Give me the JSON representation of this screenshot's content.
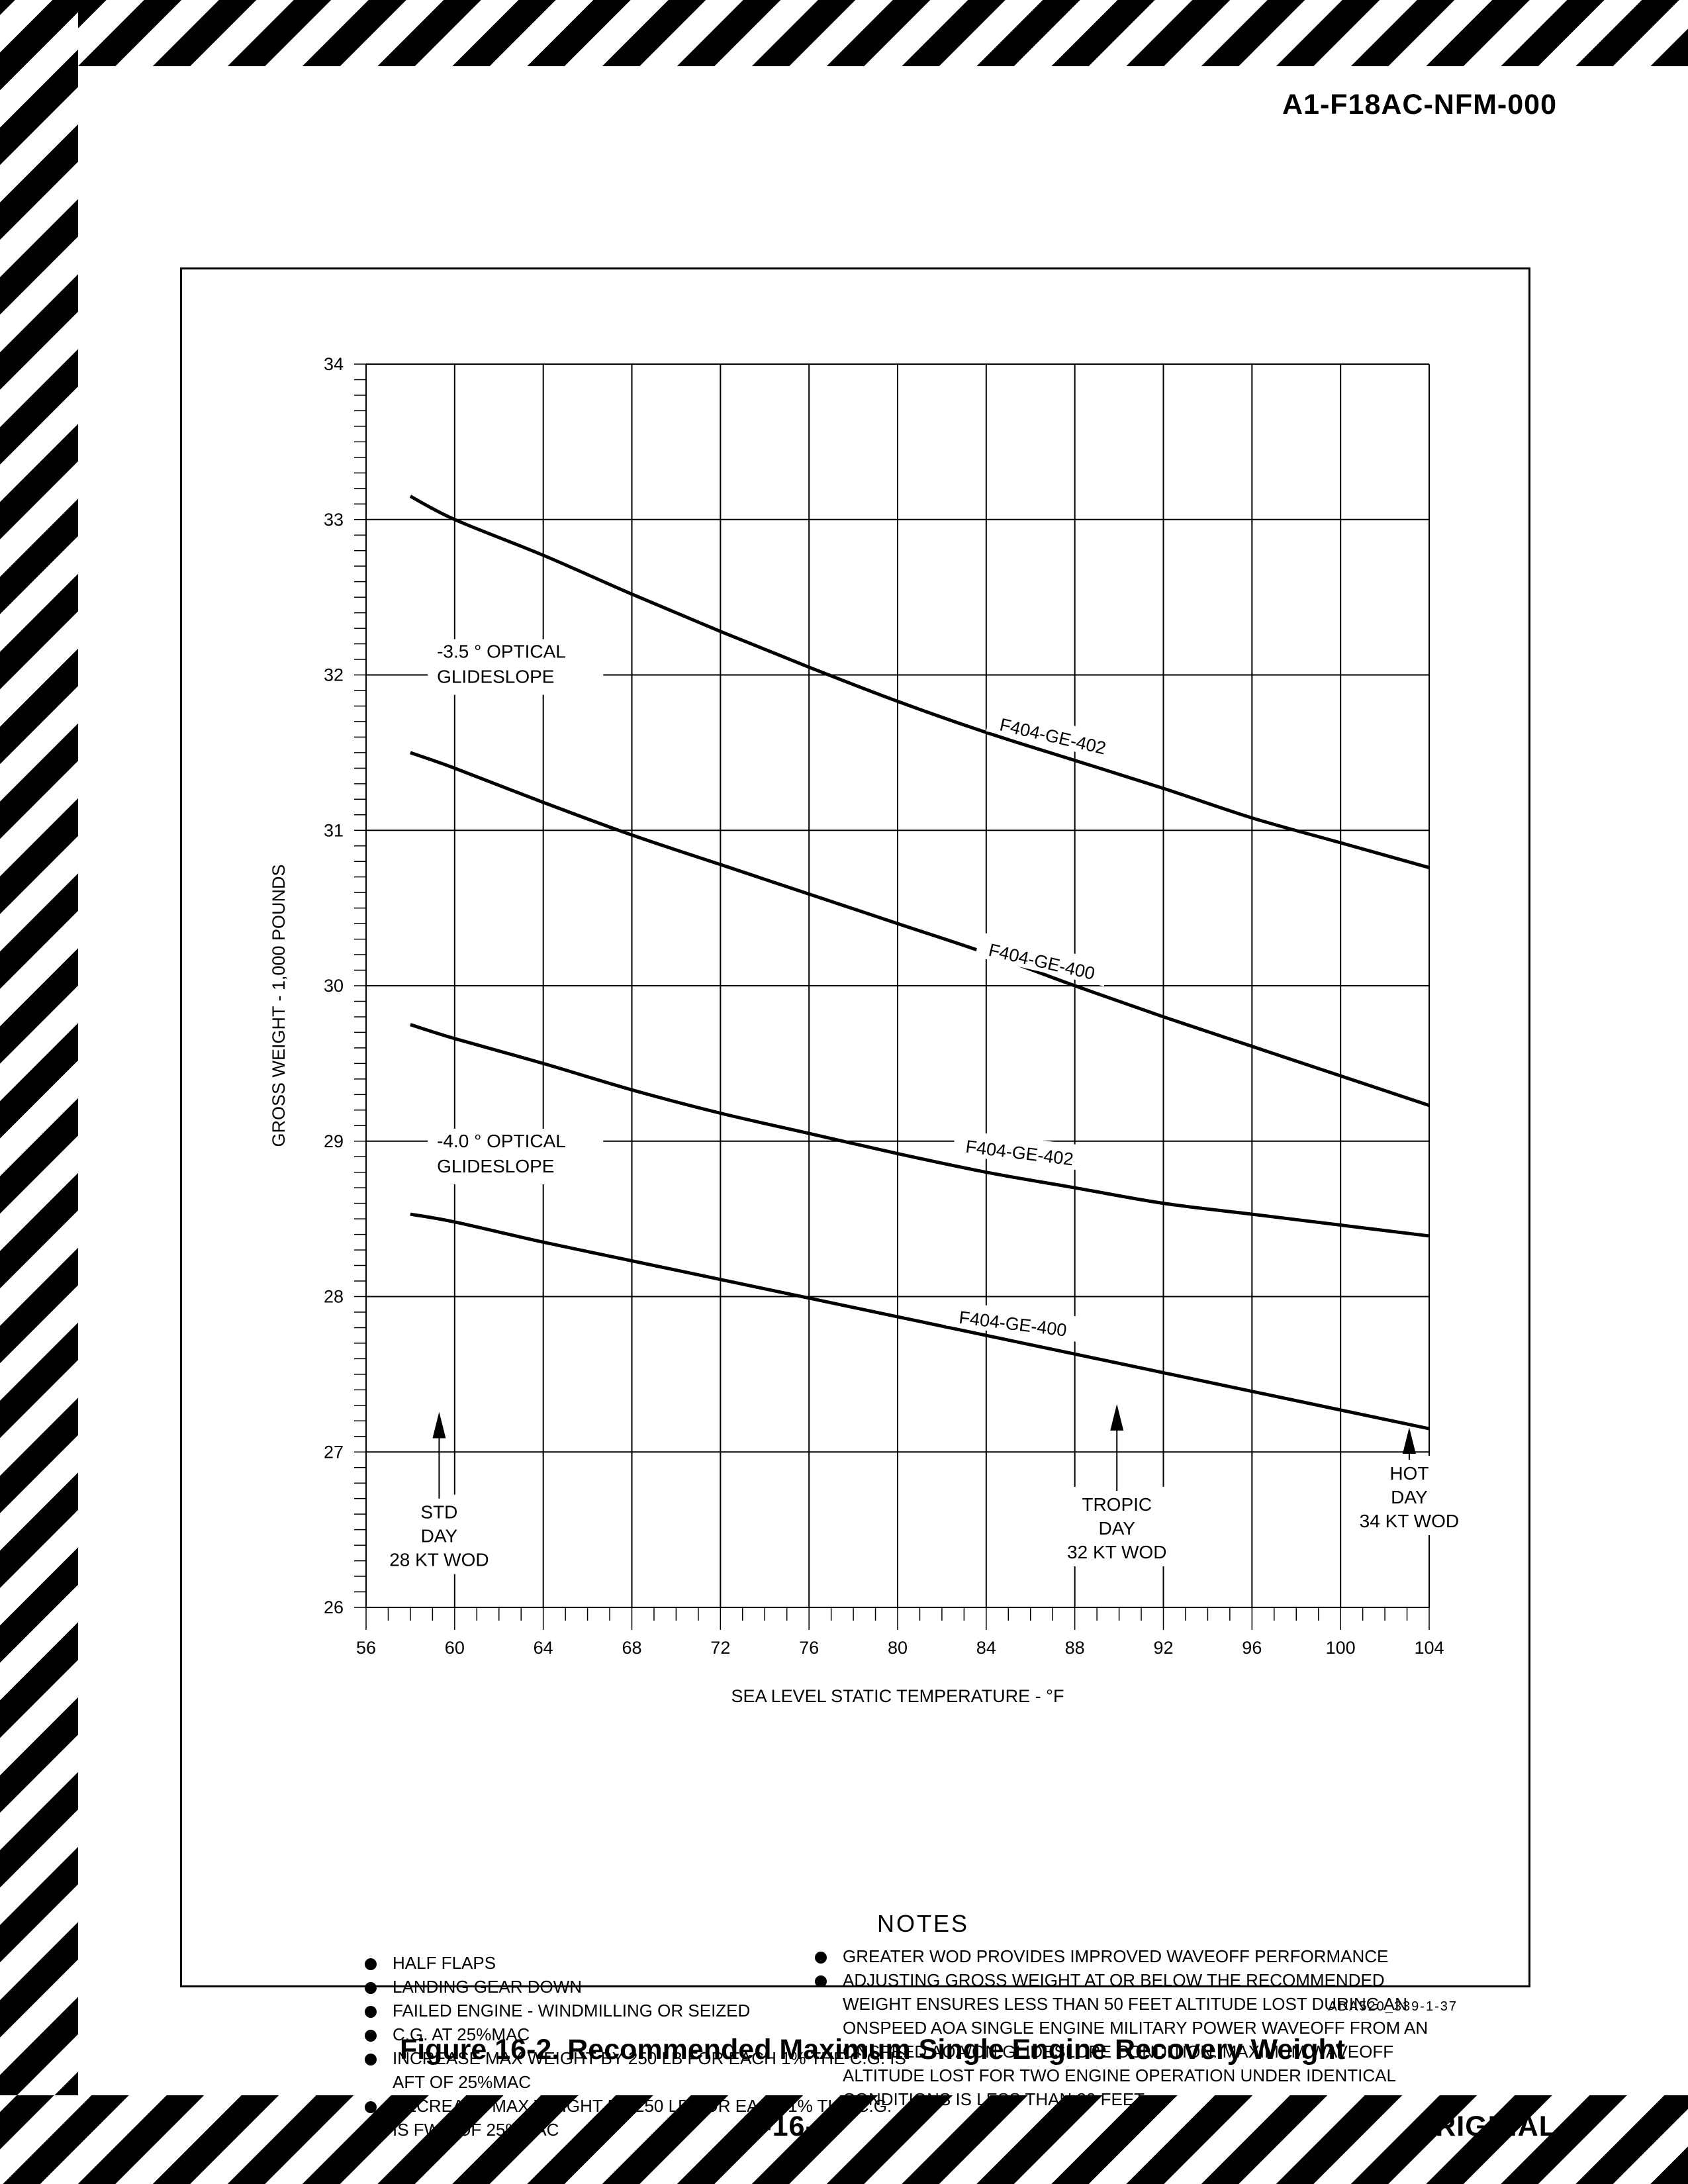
{
  "header": {
    "doc_number": "A1-F18AC-NFM-000"
  },
  "footer": {
    "page_number": "V-16-4",
    "status": "ORIGINAL"
  },
  "figure": {
    "caption": "Figure 16-2. Recommended Maximum Single Engine Recovery Weight",
    "code": "ADA520_339-1-37"
  },
  "chart_data": {
    "type": "line",
    "xlabel": "SEA LEVEL STATIC TEMPERATURE - °F",
    "ylabel": "GROSS WEIGHT - 1,000 POUNDS",
    "xlim": [
      56,
      104
    ],
    "ylim": [
      26,
      34
    ],
    "x_ticks": [
      56,
      60,
      64,
      68,
      72,
      76,
      80,
      84,
      88,
      92,
      96,
      100,
      104
    ],
    "y_ticks": [
      26,
      27,
      28,
      29,
      30,
      31,
      32,
      33,
      34
    ],
    "grid": true,
    "series": [
      {
        "name": "F404-GE-402",
        "label_x": 87,
        "label_y": 31.6,
        "label_angle": 13,
        "x": [
          58,
          60,
          64,
          68,
          72,
          76,
          80,
          84,
          88,
          92,
          96,
          100,
          104
        ],
        "y": [
          33.15,
          33.0,
          32.77,
          32.52,
          32.28,
          32.05,
          31.83,
          31.63,
          31.45,
          31.27,
          31.08,
          30.92,
          30.76
        ]
      },
      {
        "name": "F404-GE-400",
        "label_x": 86.5,
        "label_y": 30.15,
        "label_angle": 13,
        "x": [
          58,
          60,
          64,
          68,
          72,
          76,
          80,
          84,
          88,
          92,
          96,
          100,
          104
        ],
        "y": [
          31.5,
          31.4,
          31.18,
          30.97,
          30.78,
          30.59,
          30.4,
          30.21,
          30.0,
          29.8,
          29.61,
          29.42,
          29.23
        ]
      },
      {
        "name": "F404-GE-402",
        "label_x": 85.5,
        "label_y": 28.92,
        "label_angle": 7,
        "x": [
          58,
          60,
          64,
          68,
          72,
          76,
          80,
          84,
          88,
          92,
          96,
          100,
          104
        ],
        "y": [
          29.75,
          29.66,
          29.5,
          29.33,
          29.18,
          29.05,
          28.92,
          28.8,
          28.7,
          28.6,
          28.53,
          28.46,
          28.39
        ]
      },
      {
        "name": "F404-GE-400",
        "label_x": 85.2,
        "label_y": 27.82,
        "label_angle": 7,
        "x": [
          58,
          60,
          64,
          68,
          72,
          76,
          80,
          84,
          88,
          92,
          96,
          100,
          104
        ],
        "y": [
          28.53,
          28.48,
          28.35,
          28.23,
          28.11,
          27.99,
          27.87,
          27.75,
          27.63,
          27.51,
          27.39,
          27.27,
          27.15
        ]
      }
    ],
    "annotations": [
      {
        "name": "glideslope-35",
        "lines": [
          "-3.5 ° OPTICAL",
          "GLIDESLOPE"
        ],
        "x": 59.2,
        "y": 32.0
      },
      {
        "name": "glideslope-40",
        "lines": [
          "-4.0 ° OPTICAL",
          "GLIDESLOPE"
        ],
        "x": 59.2,
        "y": 28.85
      },
      {
        "name": "std-day",
        "lines": [
          "STD",
          "DAY",
          "28 KT WOD"
        ],
        "x": 59.3,
        "arrow_from": 26.7,
        "arrow_to": 27.25
      },
      {
        "name": "tropic-day",
        "lines": [
          "TROPIC",
          "DAY",
          "32 KT WOD"
        ],
        "x": 89.9,
        "arrow_from": 26.75,
        "arrow_to": 27.3
      },
      {
        "name": "hot-day",
        "lines": [
          "HOT",
          "DAY",
          "34 KT WOD"
        ],
        "x": 103.1,
        "arrow_from": 26.95,
        "arrow_to": 27.15
      }
    ]
  },
  "notes": {
    "title": "NOTES",
    "left": [
      "HALF FLAPS",
      "LANDING GEAR DOWN",
      "FAILED ENGINE - WINDMILLING OR SEIZED",
      "C.G. AT 25%MAC",
      "INCREASE MAX WEIGHT BY 250 LB FOR EACH 1% THE C.G. IS AFT OF 25%MAC",
      "DECREASE MAX WEIGHT BY 250 LB FOR EACH 1% THE C.G. IS FWD OF 25%MAC"
    ],
    "right": [
      "GREATER WOD PROVIDES IMPROVED WAVEOFF PERFORMANCE",
      "ADJUSTING GROSS WEIGHT AT OR BELOW THE RECOMMENDED WEIGHT ENSURES LESS THAN 50 FEET ALTITUDE LOST DURING AN ONSPEED AOA SINGLE ENGINE MILITARY POWER WAVEOFF FROM AN ONSPEED AOA/ON GLIDESLOPE CONDITION. MAXIMUM WAVEOFF ALTITUDE LOST FOR TWO ENGINE OPERATION UNDER IDENTICAL CONDITIONS IS LESS THAN 30 FEET"
    ]
  }
}
